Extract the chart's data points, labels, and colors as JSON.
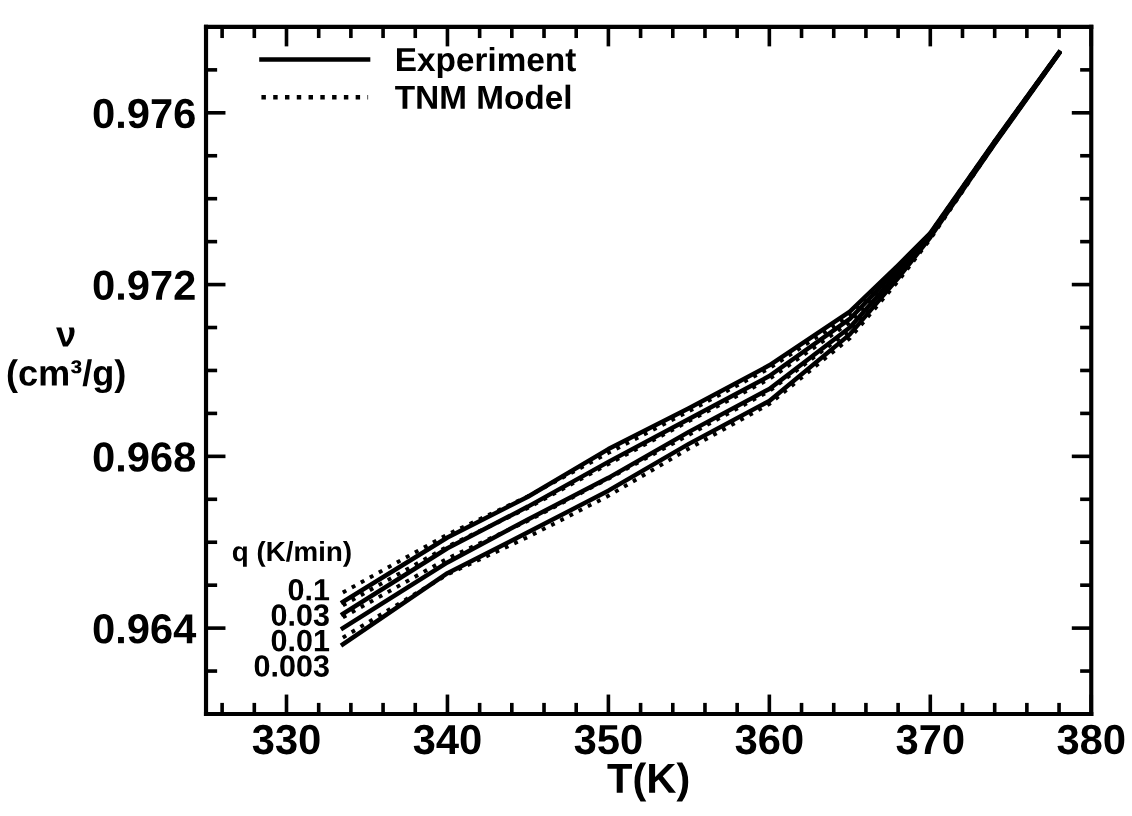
{
  "chart_data": {
    "type": "line",
    "xlabel": "T(K)",
    "ylabel": "ν\n(cm³/g)",
    "x": [
      333.5,
      340,
      345,
      350,
      355,
      360,
      365,
      368,
      370,
      374,
      378
    ],
    "series": [
      {
        "name": "Experiment",
        "color": "#000000",
        "line_style": "solid",
        "values": [
          0.96461,
          0.96611,
          0.96706,
          0.96817,
          0.96912,
          0.97012,
          0.97137,
          0.97245,
          0.9732,
          0.97534,
          0.97741
        ]
      },
      {
        "color": "#000000",
        "line_style": "solid",
        "values": [
          0.96433,
          0.96586,
          0.96683,
          0.96787,
          0.96887,
          0.96987,
          0.9712,
          0.97237,
          0.97318,
          0.97532,
          0.9774
        ]
      },
      {
        "color": "#000000",
        "line_style": "solid",
        "values": [
          0.964,
          0.96553,
          0.96653,
          0.9675,
          0.96857,
          0.96957,
          0.971,
          0.97227,
          0.97315,
          0.9753,
          0.97739
        ]
      },
      {
        "color": "#000000",
        "line_style": "solid",
        "values": [
          0.96362,
          0.96528,
          0.96623,
          0.9672,
          0.96829,
          0.96929,
          0.97084,
          0.97215,
          0.9731,
          0.97528,
          0.97738
        ]
      },
      {
        "name": "TNM Model",
        "color": "#000000",
        "line_style": "dotted",
        "values": [
          0.96483,
          0.96618,
          0.96707,
          0.96808,
          0.96905,
          0.97005,
          0.97128,
          0.9724,
          0.9732,
          0.97534,
          0.97741
        ]
      },
      {
        "color": "#000000",
        "line_style": "dotted",
        "values": [
          0.96453,
          0.9659,
          0.9668,
          0.96782,
          0.96882,
          0.9698,
          0.97112,
          0.97232,
          0.97316,
          0.97532,
          0.9774
        ]
      },
      {
        "color": "#000000",
        "line_style": "dotted",
        "values": [
          0.96425,
          0.96562,
          0.9665,
          0.96748,
          0.9685,
          0.96952,
          0.97094,
          0.97222,
          0.97312,
          0.9753,
          0.97739
        ]
      },
      {
        "color": "#000000",
        "line_style": "dotted",
        "values": [
          0.96378,
          0.96525,
          0.96612,
          0.96708,
          0.96818,
          0.96922,
          0.97075,
          0.97208,
          0.97306,
          0.97528,
          0.97738
        ]
      }
    ],
    "annotations": [
      "q (K/min)",
      "0.1",
      "0.03",
      "0.01",
      "0.003"
    ],
    "xlim": [
      325,
      380
    ],
    "ylim": [
      0.962,
      0.978
    ],
    "xticks": [
      330,
      340,
      350,
      360,
      370,
      380
    ],
    "yticks": [
      0.964,
      0.968,
      0.972,
      0.976
    ],
    "legend": "top left",
    "marker": "none",
    "grid": false
  }
}
